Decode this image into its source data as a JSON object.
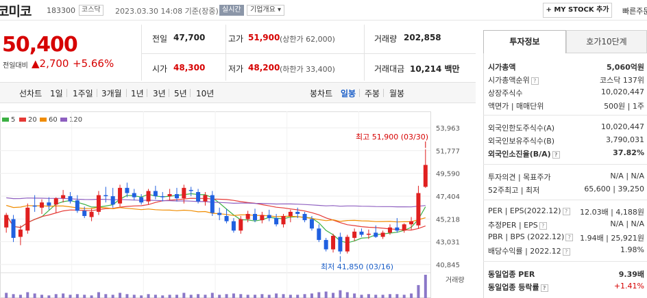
{
  "header": {
    "stock_name": "코미코",
    "stock_code": "183300",
    "market": "코스닥",
    "timestamp": "2023.03.30 14:08  기준(장중)",
    "realtime": "실시간",
    "company_overview": "기업개요 ▾",
    "mystock_button": "+ MY STOCK 추가",
    "quick_link": "빠른주문"
  },
  "price": {
    "current": "50,400",
    "change_label": "전일대비",
    "change_value": "▲2,700",
    "change_percent": "+5.66%"
  },
  "summary": {
    "prev_close_label": "전일",
    "prev_close": "47,700",
    "high_label": "고가",
    "high": "51,900",
    "upper_limit": "(상한가 62,000)",
    "volume_label": "거래량",
    "volume": "202,858",
    "open_label": "시가",
    "open": "48,300",
    "low_label": "저가",
    "low": "48,200",
    "lower_limit": "(하한가 33,400)",
    "amount_label": "거래대금",
    "amount": "10,214 백만"
  },
  "periods": {
    "line_label": "선차트",
    "line_items": [
      "1일",
      "1주일",
      "3개월",
      "1년",
      "3년",
      "5년",
      "10년"
    ],
    "candle_label": "봉차트",
    "candle_items": [
      "일봉",
      "주봉",
      "월봉"
    ],
    "candle_selected": "일봉"
  },
  "legend": [
    {
      "name": "5",
      "color": "#3cb043"
    },
    {
      "name": "20",
      "color": "#e53935"
    },
    {
      "name": "60",
      "color": "#f08c00"
    },
    {
      "name": "120",
      "color": "#8e5fc0"
    }
  ],
  "chart": {
    "y_ticks": [
      "53,963",
      "51,777",
      "49,590",
      "47,404",
      "45,218",
      "43,031",
      "40,845"
    ],
    "high_annotation": "최고 51,900 (03/30)",
    "low_annotation": "최저 41,850 (03/16)",
    "volume_label": "거래량",
    "up_color": "#e02020",
    "down_color": "#2060e0"
  },
  "chart_data": {
    "type": "candlestick",
    "y_range": [
      40845,
      53963
    ],
    "candles": [
      {
        "o": 44400,
        "h": 45800,
        "l": 43900,
        "c": 45600
      },
      {
        "o": 45200,
        "h": 45600,
        "l": 43000,
        "c": 43400
      },
      {
        "o": 43500,
        "h": 44600,
        "l": 42700,
        "c": 44200
      },
      {
        "o": 44100,
        "h": 46700,
        "l": 43800,
        "c": 46300
      },
      {
        "o": 46500,
        "h": 47500,
        "l": 45900,
        "c": 46400
      },
      {
        "o": 46300,
        "h": 47100,
        "l": 45700,
        "c": 46800
      },
      {
        "o": 46800,
        "h": 47300,
        "l": 46100,
        "c": 46500
      },
      {
        "o": 46600,
        "h": 47300,
        "l": 45800,
        "c": 47200
      },
      {
        "o": 47200,
        "h": 48000,
        "l": 46800,
        "c": 47500
      },
      {
        "o": 47400,
        "h": 47800,
        "l": 46700,
        "c": 46900
      },
      {
        "o": 47000,
        "h": 47500,
        "l": 45800,
        "c": 46000
      },
      {
        "o": 46000,
        "h": 46400,
        "l": 45300,
        "c": 45500
      },
      {
        "o": 45400,
        "h": 46200,
        "l": 45000,
        "c": 45900
      },
      {
        "o": 45900,
        "h": 47900,
        "l": 45600,
        "c": 47500
      },
      {
        "o": 47500,
        "h": 48300,
        "l": 46800,
        "c": 47400
      },
      {
        "o": 47400,
        "h": 48200,
        "l": 46300,
        "c": 46600
      },
      {
        "o": 46700,
        "h": 48500,
        "l": 46400,
        "c": 48200
      },
      {
        "o": 48200,
        "h": 48700,
        "l": 47300,
        "c": 47700
      },
      {
        "o": 47700,
        "h": 48100,
        "l": 47000,
        "c": 47300
      },
      {
        "o": 47300,
        "h": 47600,
        "l": 46600,
        "c": 46800
      },
      {
        "o": 46900,
        "h": 48100,
        "l": 46600,
        "c": 47900
      },
      {
        "o": 47900,
        "h": 48400,
        "l": 47100,
        "c": 47400
      },
      {
        "o": 47400,
        "h": 47800,
        "l": 46900,
        "c": 47300
      },
      {
        "o": 47400,
        "h": 48100,
        "l": 47000,
        "c": 47600
      },
      {
        "o": 47600,
        "h": 48200,
        "l": 46900,
        "c": 47200
      },
      {
        "o": 47200,
        "h": 48500,
        "l": 46700,
        "c": 48200
      },
      {
        "o": 48000,
        "h": 48300,
        "l": 47400,
        "c": 47900
      },
      {
        "o": 47800,
        "h": 48100,
        "l": 46700,
        "c": 46900
      },
      {
        "o": 46900,
        "h": 47800,
        "l": 46500,
        "c": 47500
      },
      {
        "o": 47500,
        "h": 47900,
        "l": 45500,
        "c": 45800
      },
      {
        "o": 45800,
        "h": 46300,
        "l": 45100,
        "c": 45600
      },
      {
        "o": 45500,
        "h": 46200,
        "l": 44800,
        "c": 45000
      },
      {
        "o": 45000,
        "h": 45300,
        "l": 43900,
        "c": 44100
      },
      {
        "o": 44100,
        "h": 45500,
        "l": 43800,
        "c": 45200
      },
      {
        "o": 45200,
        "h": 46000,
        "l": 44900,
        "c": 45700
      },
      {
        "o": 45700,
        "h": 46200,
        "l": 44900,
        "c": 45100
      },
      {
        "o": 45100,
        "h": 45900,
        "l": 44800,
        "c": 45600
      },
      {
        "o": 45600,
        "h": 46100,
        "l": 45000,
        "c": 45300
      },
      {
        "o": 45300,
        "h": 45700,
        "l": 44500,
        "c": 44700
      },
      {
        "o": 44700,
        "h": 45700,
        "l": 44400,
        "c": 45500
      },
      {
        "o": 45500,
        "h": 46100,
        "l": 44900,
        "c": 45900
      },
      {
        "o": 45900,
        "h": 46300,
        "l": 45300,
        "c": 45700
      },
      {
        "o": 45700,
        "h": 45900,
        "l": 44900,
        "c": 45100
      },
      {
        "o": 45200,
        "h": 45500,
        "l": 44100,
        "c": 44300
      },
      {
        "o": 44300,
        "h": 44700,
        "l": 43000,
        "c": 43200
      },
      {
        "o": 43200,
        "h": 43400,
        "l": 42100,
        "c": 42300
      },
      {
        "o": 42300,
        "h": 43800,
        "l": 42000,
        "c": 43600
      },
      {
        "o": 43500,
        "h": 43900,
        "l": 41850,
        "c": 42100
      },
      {
        "o": 42100,
        "h": 43700,
        "l": 41900,
        "c": 43500
      },
      {
        "o": 43400,
        "h": 44300,
        "l": 43100,
        "c": 44000
      },
      {
        "o": 44000,
        "h": 44300,
        "l": 43500,
        "c": 43700
      },
      {
        "o": 43700,
        "h": 44200,
        "l": 43300,
        "c": 43800
      },
      {
        "o": 43900,
        "h": 44600,
        "l": 43400,
        "c": 43500
      },
      {
        "o": 43500,
        "h": 44100,
        "l": 43300,
        "c": 43900
      },
      {
        "o": 43900,
        "h": 44700,
        "l": 43700,
        "c": 44400
      },
      {
        "o": 44400,
        "h": 45300,
        "l": 43900,
        "c": 44100
      },
      {
        "o": 44100,
        "h": 44800,
        "l": 43900,
        "c": 44700
      },
      {
        "o": 44700,
        "h": 45400,
        "l": 44200,
        "c": 45000
      },
      {
        "o": 44600,
        "h": 48400,
        "l": 44300,
        "c": 47700
      },
      {
        "o": 48300,
        "h": 51900,
        "l": 48200,
        "c": 50400
      }
    ],
    "volume": [
      8,
      6,
      5,
      9,
      7,
      5,
      4,
      6,
      7,
      5,
      6,
      5,
      4,
      9,
      6,
      5,
      8,
      6,
      5,
      4,
      6,
      5,
      4,
      5,
      5,
      8,
      5,
      6,
      5,
      8,
      5,
      6,
      7,
      6,
      5,
      5,
      6,
      5,
      7,
      6,
      5,
      5,
      6,
      7,
      9,
      10,
      8,
      12,
      9,
      7,
      5,
      6,
      5,
      5,
      6,
      6,
      5,
      7,
      20,
      36
    ]
  },
  "invest_tabs": [
    "투자정보",
    "호가10단계"
  ],
  "invest": {
    "market_cap_label": "시가총액",
    "market_cap": "5,060억원",
    "cap_rank_label": "시가총액순위",
    "cap_rank": "코스닥 137위",
    "shares_label": "상장주식수",
    "shares": "10,020,447",
    "par_label": "액면가 | 매매단위",
    "par": "500원  |  1주",
    "foreign_limit_label": "외국인한도주식수(A)",
    "foreign_limit": "10,020,447",
    "foreign_hold_label": "외국인보유주식수(B)",
    "foreign_hold": "3,790,031",
    "foreign_ratio_label": "외국인소진율(B/A)",
    "foreign_ratio": "37.82%",
    "opinion_label": "투자의견 | 목표주가",
    "opinion": "N/A  |  N/A",
    "w52_label": "52주최고 | 최저",
    "w52": "65,600  |  39,250",
    "per_label": "PER | EPS(2022.12)",
    "per": "12.03배  |  4,188원",
    "est_per_label": "추정PER | EPS",
    "est_per": "N/A  |  N/A",
    "pbr_label": "PBR | BPS (2022.12)",
    "pbr": "1.94배  |  25,921원",
    "div_label": "배당수익률 | 2022.12",
    "div": "1.98%",
    "ind_per_label": "동일업종 PER",
    "ind_per": "9.39배",
    "ind_rate_label": "동일업종 등락률",
    "ind_rate": "+1.41%"
  }
}
